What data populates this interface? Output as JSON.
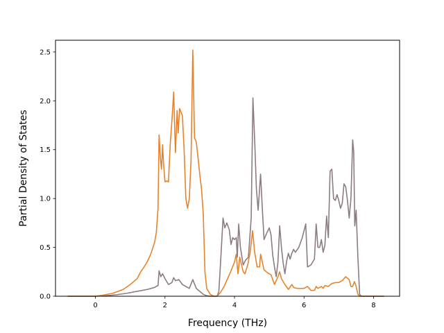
{
  "chart_data": {
    "type": "line",
    "xlabel": "Frequency (THz)",
    "ylabel": "Partial Density of States",
    "xlim": [
      -1.15,
      8.75
    ],
    "ylim": [
      0,
      2.62
    ],
    "xticks": [
      0,
      2,
      4,
      6,
      8
    ],
    "xtick_labels": [
      "0",
      "2",
      "4",
      "6",
      "8"
    ],
    "yticks": [
      0,
      0.5,
      1.0,
      1.5,
      2.0,
      2.5
    ],
    "ytick_labels": [
      "0.0",
      "0.5",
      "1.0",
      "1.5",
      "2.0",
      "2.5"
    ],
    "grid": false,
    "legend": false,
    "series": [
      {
        "color": "#8c7b80",
        "points": [
          [
            -0.8,
            0.0
          ],
          [
            0.0,
            0.0
          ],
          [
            0.3,
            0.005
          ],
          [
            0.6,
            0.015
          ],
          [
            0.9,
            0.03
          ],
          [
            1.2,
            0.05
          ],
          [
            1.5,
            0.07
          ],
          [
            1.7,
            0.09
          ],
          [
            1.8,
            0.11
          ],
          [
            1.83,
            0.26
          ],
          [
            1.88,
            0.2
          ],
          [
            1.93,
            0.23
          ],
          [
            2.0,
            0.18
          ],
          [
            2.1,
            0.12
          ],
          [
            2.2,
            0.14
          ],
          [
            2.25,
            0.19
          ],
          [
            2.3,
            0.16
          ],
          [
            2.4,
            0.17
          ],
          [
            2.5,
            0.12
          ],
          [
            2.6,
            0.1
          ],
          [
            2.7,
            0.08
          ],
          [
            2.8,
            0.17
          ],
          [
            2.9,
            0.08
          ],
          [
            3.0,
            0.05
          ],
          [
            3.1,
            0.02
          ],
          [
            3.2,
            0.005
          ],
          [
            3.3,
            0.0
          ],
          [
            3.5,
            0.0
          ],
          [
            3.55,
            0.05
          ],
          [
            3.6,
            0.35
          ],
          [
            3.67,
            0.8
          ],
          [
            3.72,
            0.7
          ],
          [
            3.78,
            0.75
          ],
          [
            3.85,
            0.68
          ],
          [
            3.9,
            0.53
          ],
          [
            3.95,
            0.6
          ],
          [
            4.0,
            0.58
          ],
          [
            4.05,
            0.6
          ],
          [
            4.08,
            0.4
          ],
          [
            4.12,
            0.74
          ],
          [
            4.17,
            0.5
          ],
          [
            4.25,
            0.32
          ],
          [
            4.32,
            0.37
          ],
          [
            4.4,
            0.4
          ],
          [
            4.48,
            0.8
          ],
          [
            4.53,
            2.03
          ],
          [
            4.58,
            1.6
          ],
          [
            4.63,
            1.1
          ],
          [
            4.68,
            0.88
          ],
          [
            4.75,
            1.25
          ],
          [
            4.8,
            0.9
          ],
          [
            4.85,
            0.58
          ],
          [
            4.92,
            0.64
          ],
          [
            5.0,
            0.7
          ],
          [
            5.05,
            0.63
          ],
          [
            5.1,
            0.42
          ],
          [
            5.15,
            0.3
          ],
          [
            5.2,
            0.2
          ],
          [
            5.25,
            0.35
          ],
          [
            5.3,
            0.72
          ],
          [
            5.35,
            0.5
          ],
          [
            5.4,
            0.34
          ],
          [
            5.45,
            0.23
          ],
          [
            5.5,
            0.36
          ],
          [
            5.55,
            0.44
          ],
          [
            5.6,
            0.38
          ],
          [
            5.65,
            0.44
          ],
          [
            5.7,
            0.48
          ],
          [
            5.75,
            0.45
          ],
          [
            5.85,
            0.5
          ],
          [
            5.95,
            0.6
          ],
          [
            6.05,
            0.74
          ],
          [
            6.1,
            0.3
          ],
          [
            6.2,
            0.32
          ],
          [
            6.3,
            0.38
          ],
          [
            6.35,
            0.74
          ],
          [
            6.4,
            0.5
          ],
          [
            6.45,
            0.5
          ],
          [
            6.5,
            0.58
          ],
          [
            6.55,
            0.45
          ],
          [
            6.6,
            0.52
          ],
          [
            6.65,
            0.82
          ],
          [
            6.7,
            0.6
          ],
          [
            6.75,
            1.28
          ],
          [
            6.8,
            1.3
          ],
          [
            6.85,
            1.0
          ],
          [
            6.9,
            0.98
          ],
          [
            6.95,
            1.04
          ],
          [
            7.0,
            0.98
          ],
          [
            7.05,
            0.9
          ],
          [
            7.1,
            0.95
          ],
          [
            7.15,
            1.15
          ],
          [
            7.2,
            1.12
          ],
          [
            7.25,
            0.98
          ],
          [
            7.3,
            0.8
          ],
          [
            7.35,
            1.0
          ],
          [
            7.4,
            1.6
          ],
          [
            7.43,
            1.48
          ],
          [
            7.46,
            0.72
          ],
          [
            7.5,
            0.88
          ],
          [
            7.55,
            0.4
          ],
          [
            7.6,
            0.02
          ],
          [
            7.65,
            0.0
          ],
          [
            8.3,
            0.0
          ]
        ]
      },
      {
        "color": "#e8822a",
        "points": [
          [
            -0.8,
            0.0
          ],
          [
            0.0,
            0.0
          ],
          [
            0.2,
            0.01
          ],
          [
            0.5,
            0.03
          ],
          [
            0.8,
            0.07
          ],
          [
            1.0,
            0.12
          ],
          [
            1.2,
            0.18
          ],
          [
            1.3,
            0.25
          ],
          [
            1.4,
            0.3
          ],
          [
            1.5,
            0.36
          ],
          [
            1.6,
            0.44
          ],
          [
            1.7,
            0.55
          ],
          [
            1.75,
            0.65
          ],
          [
            1.8,
            0.9
          ],
          [
            1.83,
            1.65
          ],
          [
            1.87,
            1.4
          ],
          [
            1.9,
            1.3
          ],
          [
            1.93,
            1.55
          ],
          [
            1.96,
            1.35
          ],
          [
            2.0,
            1.17
          ],
          [
            2.05,
            1.18
          ],
          [
            2.1,
            1.17
          ],
          [
            2.15,
            1.55
          ],
          [
            2.2,
            1.8
          ],
          [
            2.25,
            2.09
          ],
          [
            2.3,
            1.47
          ],
          [
            2.35,
            1.9
          ],
          [
            2.38,
            1.67
          ],
          [
            2.42,
            1.92
          ],
          [
            2.5,
            1.85
          ],
          [
            2.55,
            1.5
          ],
          [
            2.6,
            1.0
          ],
          [
            2.65,
            0.9
          ],
          [
            2.7,
            1.0
          ],
          [
            2.75,
            1.4
          ],
          [
            2.8,
            2.52
          ],
          [
            2.85,
            1.62
          ],
          [
            2.9,
            1.58
          ],
          [
            2.95,
            1.42
          ],
          [
            3.0,
            1.25
          ],
          [
            3.05,
            1.1
          ],
          [
            3.1,
            0.85
          ],
          [
            3.15,
            0.25
          ],
          [
            3.2,
            0.08
          ],
          [
            3.3,
            0.02
          ],
          [
            3.4,
            0.0
          ],
          [
            3.5,
            0.0
          ],
          [
            3.6,
            0.04
          ],
          [
            3.7,
            0.1
          ],
          [
            3.8,
            0.18
          ],
          [
            3.9,
            0.26
          ],
          [
            4.0,
            0.35
          ],
          [
            4.05,
            0.43
          ],
          [
            4.1,
            0.23
          ],
          [
            4.15,
            0.4
          ],
          [
            4.25,
            0.25
          ],
          [
            4.3,
            0.23
          ],
          [
            4.38,
            0.32
          ],
          [
            4.45,
            0.45
          ],
          [
            4.52,
            0.67
          ],
          [
            4.58,
            0.45
          ],
          [
            4.65,
            0.3
          ],
          [
            4.72,
            0.3
          ],
          [
            4.75,
            0.43
          ],
          [
            4.8,
            0.35
          ],
          [
            4.85,
            0.27
          ],
          [
            4.95,
            0.24
          ],
          [
            5.05,
            0.22
          ],
          [
            5.15,
            0.12
          ],
          [
            5.25,
            0.2
          ],
          [
            5.3,
            0.25
          ],
          [
            5.35,
            0.18
          ],
          [
            5.45,
            0.12
          ],
          [
            5.55,
            0.07
          ],
          [
            5.65,
            0.12
          ],
          [
            5.7,
            0.09
          ],
          [
            5.8,
            0.08
          ],
          [
            5.9,
            0.08
          ],
          [
            6.0,
            0.08
          ],
          [
            6.1,
            0.1
          ],
          [
            6.2,
            0.06
          ],
          [
            6.3,
            0.06
          ],
          [
            6.35,
            0.1
          ],
          [
            6.4,
            0.08
          ],
          [
            6.5,
            0.1
          ],
          [
            6.55,
            0.08
          ],
          [
            6.6,
            0.11
          ],
          [
            6.7,
            0.1
          ],
          [
            6.8,
            0.13
          ],
          [
            6.9,
            0.14
          ],
          [
            7.0,
            0.14
          ],
          [
            7.1,
            0.16
          ],
          [
            7.2,
            0.2
          ],
          [
            7.3,
            0.17
          ],
          [
            7.35,
            0.1
          ],
          [
            7.4,
            0.1
          ],
          [
            7.45,
            0.15
          ],
          [
            7.5,
            0.1
          ],
          [
            7.55,
            0.02
          ],
          [
            7.6,
            0.0
          ],
          [
            8.3,
            0.0
          ]
        ]
      }
    ]
  }
}
